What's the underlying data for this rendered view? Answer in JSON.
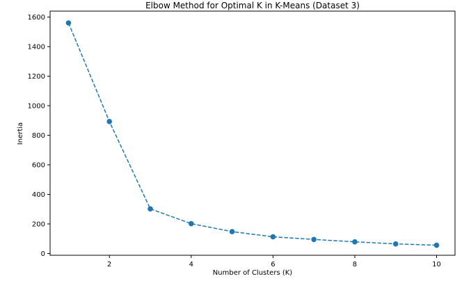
{
  "chart_data": {
    "type": "line",
    "title": "Elbow Method for Optimal K in K-Means (Dataset 3)",
    "xlabel": "Number of Clusters (K)",
    "ylabel": "Inertia",
    "x": [
      1,
      2,
      3,
      4,
      5,
      6,
      7,
      8,
      9,
      10
    ],
    "series": [
      {
        "values": [
          1560,
          893,
          302,
          202,
          148,
          113,
          95,
          79,
          65,
          56
        ],
        "color": "#1f77b4",
        "line_style": "dashed",
        "marker": "circle"
      }
    ],
    "xlim": [
      0.55,
      10.45
    ],
    "ylim": [
      -12,
      1640
    ],
    "xticks": [
      2,
      4,
      6,
      8,
      10
    ],
    "yticks": [
      0,
      200,
      400,
      600,
      800,
      1000,
      1200,
      1400,
      1600
    ],
    "xtick_labels": [
      "2",
      "4",
      "6",
      "8",
      "10"
    ],
    "ytick_labels": [
      "0",
      "200",
      "400",
      "600",
      "800",
      "1000",
      "1200",
      "1400",
      "1600"
    ],
    "grid": false,
    "legend": "none"
  }
}
